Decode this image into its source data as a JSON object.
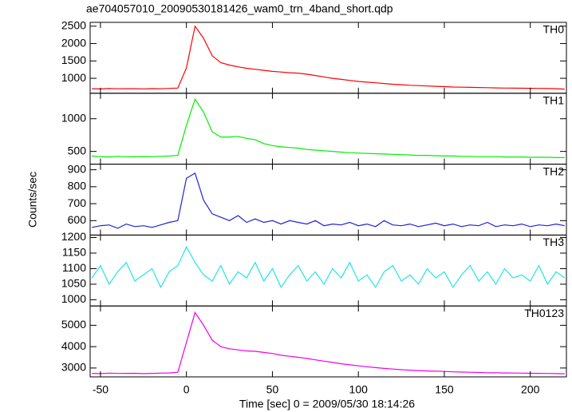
{
  "chart_data": {
    "type": "line",
    "title": "ae704057010_20090530181426_wam0_trn_4band_short.qdp",
    "xlabel": "Time [sec] 0 = 2009/05/30 18:14:26",
    "ylabel": "Counts/sec",
    "x": [
      -55,
      -50,
      -45,
      -40,
      -35,
      -30,
      -25,
      -20,
      -15,
      -10,
      -5,
      0,
      5,
      10,
      15,
      20,
      25,
      30,
      35,
      40,
      45,
      50,
      55,
      60,
      65,
      70,
      75,
      80,
      85,
      90,
      95,
      100,
      105,
      110,
      115,
      120,
      125,
      130,
      135,
      140,
      145,
      150,
      155,
      160,
      165,
      170,
      175,
      180,
      185,
      190,
      195,
      200,
      205,
      210,
      215,
      220
    ],
    "xlim": [
      -56,
      221
    ],
    "xticks": [
      -50,
      0,
      50,
      100,
      150,
      200
    ],
    "panels": [
      {
        "name": "TH0",
        "color": "#ff0000",
        "ylim": [
          570,
          2610
        ],
        "yticks": [
          1000,
          1500,
          2000,
          2500
        ],
        "values": [
          700,
          695,
          705,
          698,
          702,
          700,
          697,
          703,
          699,
          710,
          720,
          1300,
          2500,
          2150,
          1650,
          1450,
          1380,
          1330,
          1290,
          1260,
          1230,
          1200,
          1180,
          1160,
          1150,
          1120,
          1080,
          1040,
          1000,
          970,
          940,
          910,
          890,
          870,
          850,
          830,
          815,
          800,
          790,
          780,
          770,
          760,
          750,
          745,
          740,
          735,
          730,
          725,
          720,
          718,
          715,
          712,
          710,
          705,
          700,
          690
        ]
      },
      {
        "name": "TH1",
        "color": "#00ee00",
        "ylim": [
          305,
          1390
        ],
        "yticks": [
          500,
          1000
        ],
        "values": [
          430,
          420,
          415,
          425,
          420,
          418,
          422,
          420,
          425,
          430,
          440,
          900,
          1300,
          1100,
          800,
          720,
          720,
          730,
          700,
          680,
          620,
          590,
          570,
          560,
          550,
          530,
          520,
          510,
          500,
          490,
          480,
          475,
          470,
          465,
          460,
          455,
          450,
          445,
          440,
          440,
          435,
          430,
          430,
          425,
          425,
          420,
          420,
          420,
          415,
          415,
          415,
          410,
          410,
          410,
          405,
          405
        ]
      },
      {
        "name": "TH2",
        "color": "#2020dd",
        "ylim": [
          515,
          933
        ],
        "yticks": [
          600,
          700,
          800,
          900
        ],
        "values": [
          560,
          570,
          575,
          555,
          580,
          565,
          570,
          560,
          575,
          590,
          600,
          850,
          880,
          720,
          640,
          620,
          600,
          630,
          590,
          610,
          590,
          600,
          580,
          600,
          590,
          580,
          600,
          570,
          580,
          575,
          590,
          570,
          580,
          565,
          600,
          575,
          570,
          580,
          565,
          575,
          585,
          570,
          580,
          565,
          575,
          570,
          590,
          565,
          575,
          570,
          580,
          565,
          575,
          570,
          580,
          570
        ]
      },
      {
        "name": "TH3",
        "color": "#22e5e5",
        "ylim": [
          980,
          1208
        ],
        "yticks": [
          1000,
          1050,
          1100,
          1150,
          1200
        ],
        "values": [
          1070,
          1110,
          1050,
          1090,
          1120,
          1060,
          1080,
          1100,
          1040,
          1090,
          1110,
          1170,
          1120,
          1080,
          1060,
          1110,
          1050,
          1090,
          1070,
          1120,
          1060,
          1100,
          1040,
          1080,
          1110,
          1060,
          1090,
          1050,
          1100,
          1070,
          1120,
          1060,
          1080,
          1040,
          1090,
          1110,
          1060,
          1080,
          1050,
          1100,
          1070,
          1090,
          1040,
          1080,
          1110,
          1060,
          1090,
          1050,
          1100,
          1070,
          1080,
          1060,
          1110,
          1050,
          1090,
          1070
        ]
      },
      {
        "name": "TH0123",
        "color": "#ee00ee",
        "ylim": [
          2585,
          5905
        ],
        "yticks": [
          3000,
          4000,
          5000
        ],
        "values": [
          2750,
          2740,
          2760,
          2745,
          2750,
          2755,
          2740,
          2750,
          2760,
          2770,
          2800,
          4200,
          5600,
          5000,
          4300,
          4000,
          3900,
          3850,
          3800,
          3780,
          3730,
          3680,
          3600,
          3550,
          3500,
          3450,
          3380,
          3320,
          3260,
          3200,
          3150,
          3100,
          3060,
          3020,
          2980,
          2950,
          2920,
          2900,
          2880,
          2860,
          2850,
          2840,
          2820,
          2810,
          2800,
          2790,
          2780,
          2775,
          2770,
          2765,
          2760,
          2755,
          2750,
          2745,
          2740,
          2730
        ]
      }
    ]
  }
}
